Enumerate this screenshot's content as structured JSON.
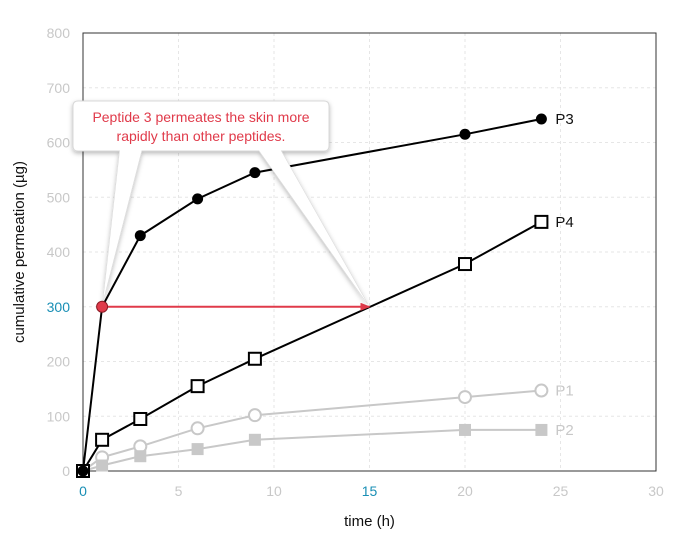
{
  "chart_data": {
    "type": "line",
    "xlabel": "time (h)",
    "ylabel": "cumulative permeation (µg)",
    "xlim": [
      0,
      30
    ],
    "ylim": [
      0,
      800
    ],
    "x_ticks": [
      "0",
      "5",
      "10",
      "15",
      "20",
      "25",
      "30"
    ],
    "y_ticks": [
      "0",
      "100",
      "200",
      "300",
      "400",
      "500",
      "600",
      "700",
      "800"
    ],
    "highlighted_x_ticks": [
      "0",
      "15"
    ],
    "highlighted_y_ticks": [
      "300"
    ],
    "grid": true,
    "series": [
      {
        "name": "P3",
        "x": [
          0,
          1,
          3,
          6,
          9,
          20,
          24
        ],
        "y": [
          0,
          300,
          430,
          497,
          545,
          615,
          643
        ],
        "marker": "filled-circle",
        "color": "#000000"
      },
      {
        "name": "P4",
        "x": [
          0,
          1,
          3,
          6,
          9,
          20,
          24
        ],
        "y": [
          0,
          57,
          95,
          155,
          205,
          378,
          455
        ],
        "marker": "open-square",
        "color": "#000000"
      },
      {
        "name": "P1",
        "x": [
          0,
          1,
          3,
          6,
          9,
          20,
          24
        ],
        "y": [
          0,
          25,
          45,
          78,
          102,
          135,
          147
        ],
        "marker": "open-circle",
        "color": "#c8c8c8"
      },
      {
        "name": "P2",
        "x": [
          0,
          1,
          3,
          6,
          9,
          20,
          24
        ],
        "y": [
          0,
          10,
          27,
          40,
          57,
          75,
          75
        ],
        "marker": "filled-square",
        "color": "#c8c8c8"
      }
    ],
    "annotations": [
      {
        "text_lines": [
          "Peptide 3 permeates the skin more",
          "rapidly than other peptides."
        ],
        "arrow_from": [
          1,
          300
        ],
        "arrow_to": [
          15,
          300
        ],
        "color": "#e03a4a"
      }
    ]
  }
}
